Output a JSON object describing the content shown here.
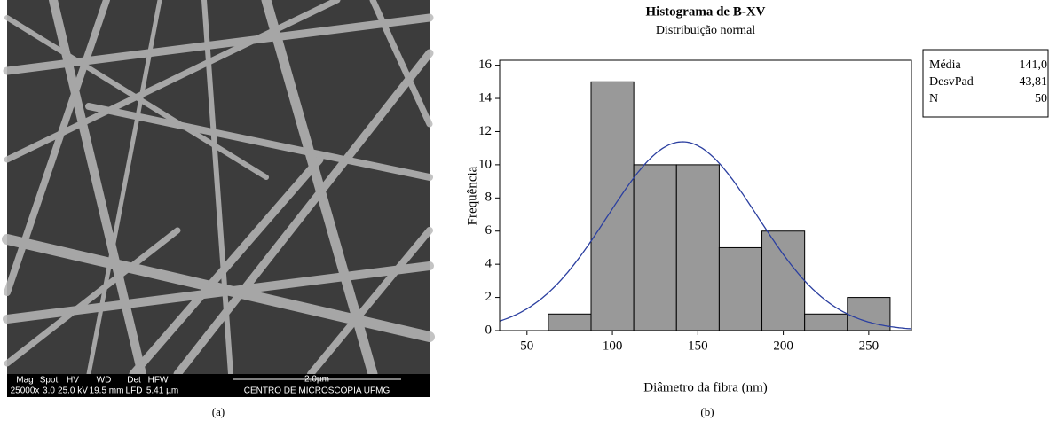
{
  "chart_data": {
    "type": "histogram",
    "title": "Histograma de B-XV",
    "subtitle": "Distribuição normal",
    "x_label": "Diâmetro da fibra (nm)",
    "y_label": "Frequência",
    "bins": [
      62.5,
      87.5,
      112.5,
      137.5,
      162.5,
      187.5,
      212.5,
      237.5,
      262.5
    ],
    "values": [
      1,
      15,
      10,
      10,
      5,
      6,
      1,
      2
    ],
    "color": "#999999",
    "curve_color": "#2b3fa0",
    "xlim": [
      34,
      275
    ],
    "ylim": [
      0,
      16.3
    ],
    "xticks": [
      50,
      100,
      150,
      200,
      250
    ],
    "yticks": [
      0,
      2,
      4,
      6,
      8,
      10,
      12,
      14,
      16
    ],
    "stats": {
      "names": [
        "Média",
        "DesvPad",
        "N"
      ],
      "values": [
        141.0,
        43.81,
        50
      ],
      "value_labels": [
        "141,0",
        "43,81",
        "50"
      ]
    },
    "caption": "(b)"
  },
  "image_panel": {
    "caption": "(a)",
    "info_labels": [
      "Mag",
      "Spot",
      "HV",
      "WD",
      "Det",
      "HFW"
    ],
    "info_values": [
      "25000x",
      "3.0",
      "25.0 kV",
      "19.5 mm",
      "LFD",
      "5.41 µm"
    ],
    "scale_bar": "2.0µm",
    "lab": "CENTRO DE MICROSCOPIA UFMG"
  }
}
